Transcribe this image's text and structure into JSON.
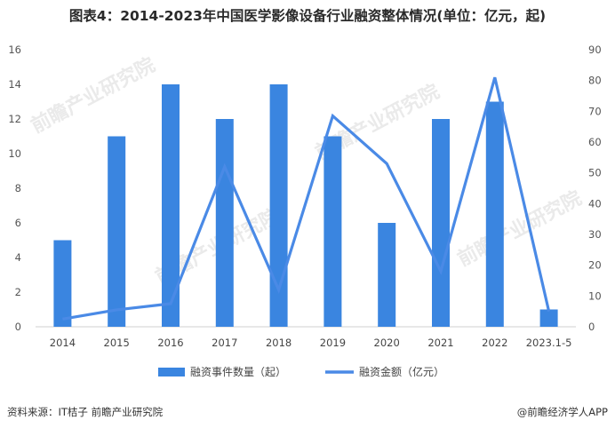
{
  "title": "图表4：2014-2023年中国医学影像设备行业融资整体情况(单位：亿元，起)",
  "source": "资料来源：IT桔子 前瞻产业研究院",
  "brand": "@前瞻经济学人APP",
  "watermark_text": "前瞻产业研究院",
  "chart_data": {
    "type": "bar",
    "categories": [
      "2014",
      "2015",
      "2016",
      "2017",
      "2018",
      "2019",
      "2020",
      "2021",
      "2022",
      "2023.1-5"
    ],
    "series": [
      {
        "name": "融资事件数量（起）",
        "type": "bar",
        "axis": "left",
        "color": "#3a85e0",
        "values": [
          5,
          11,
          14,
          12,
          14,
          11,
          6,
          12,
          13,
          1
        ]
      },
      {
        "name": "融资金额（亿元）",
        "type": "line",
        "axis": "right",
        "color": "#4a8ae6",
        "values": [
          2.5,
          5.5,
          7.5,
          52,
          12,
          68.5,
          53,
          18,
          81,
          5
        ]
      }
    ],
    "ylim_left": [
      0,
      16
    ],
    "yticks_left": [
      "0",
      "2",
      "4",
      "6",
      "8",
      "10",
      "12",
      "14",
      "16"
    ],
    "ylim_right": [
      0,
      90
    ],
    "yticks_right": [
      "0",
      "10",
      "20",
      "30",
      "40",
      "50",
      "60",
      "70",
      "80",
      "90"
    ],
    "grid": false,
    "legend_position": "bottom"
  }
}
